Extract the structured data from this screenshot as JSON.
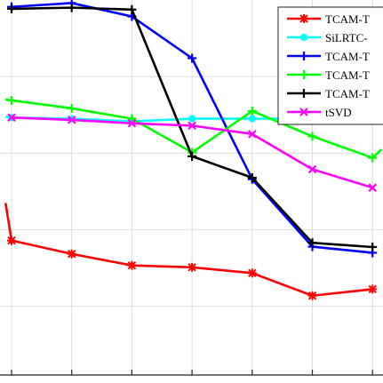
{
  "chart_data": {
    "type": "line",
    "x": [
      1,
      2,
      3,
      4,
      5,
      6,
      7
    ],
    "xlim": [
      0.9,
      7.15
    ],
    "ylim": [
      0,
      1
    ],
    "grid": true,
    "legend_position": "top-right",
    "series": [
      {
        "name": "TCAM-T",
        "color": "#ff0000",
        "marker": "asterisk",
        "values": [
          0.372,
          0.337,
          0.307,
          0.302,
          0.287,
          0.228,
          0.245
        ],
        "lead_in": [
          0.9,
          0.47
        ]
      },
      {
        "name": "SiLRTC-",
        "color": "#00ffff",
        "marker": "circle",
        "values": [
          0.693,
          0.69,
          0.683,
          0.69,
          0.69,
          0.69,
          0.69
        ],
        "lead_in": [
          0.9,
          0.695
        ]
      },
      {
        "name": "TCAM-T",
        "color": "#0000ff",
        "marker": "plus",
        "values": [
          0.982,
          0.992,
          0.957,
          0.848,
          0.532,
          0.356,
          0.34
        ]
      },
      {
        "name": "TCAM-T",
        "color": "#00ff00",
        "marker": "plus",
        "values": [
          0.738,
          0.717,
          0.69,
          0.602,
          0.71,
          0.644,
          0.588
        ],
        "lead_in": [
          0.9,
          0.74
        ],
        "lead_out": [
          7.15,
          0.61
        ]
      },
      {
        "name": "TCAM-T",
        "color": "#000000",
        "marker": "plus",
        "values": [
          0.977,
          0.98,
          0.975,
          0.592,
          0.536,
          0.366,
          0.355
        ]
      },
      {
        "name": "tSVD",
        "color": "#ff00ff",
        "marker": "x",
        "values": [
          0.693,
          0.687,
          0.678,
          0.672,
          0.65,
          0.558,
          0.51
        ]
      }
    ]
  }
}
